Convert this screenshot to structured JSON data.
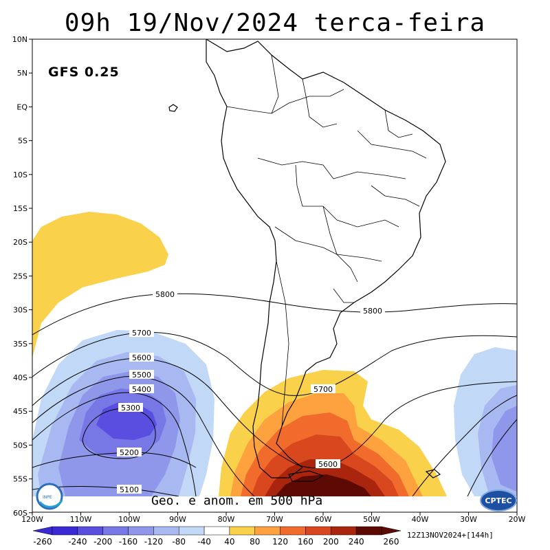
{
  "title": "09h 19/Nov/2024 terca-feira",
  "model_label": "GFS 0.25",
  "bottom_label": "Geo. e anom. em 500 hPa",
  "run_info": "12Z13NOV2024+[144h]",
  "lat_labels": [
    "10N",
    "5N",
    "EQ",
    "5S",
    "10S",
    "15S",
    "20S",
    "25S",
    "30S",
    "35S",
    "40S",
    "45S",
    "50S",
    "55S",
    "60S"
  ],
  "lon_labels": [
    "120W",
    "110W",
    "100W",
    "90W",
    "80W",
    "70W",
    "60W",
    "50W",
    "40W",
    "30W",
    "20W"
  ],
  "contour_labels": [
    "5800",
    "5800",
    "5700",
    "5700",
    "5600",
    "5600",
    "5500",
    "5400",
    "5300",
    "5200",
    "5100"
  ],
  "colorbar": {
    "labels": [
      "-260",
      "-240",
      "-200",
      "-160",
      "-120",
      "-80",
      "-40",
      "40",
      "80",
      "120",
      "160",
      "200",
      "240",
      "260"
    ],
    "colors": [
      "#3a2ad6",
      "#5a4ee0",
      "#7777e6",
      "#8f97ea",
      "#a8b8f0",
      "#c2d8f7",
      "#ffffff",
      "#f9d14a",
      "#fda23e",
      "#f16b2c",
      "#d8471e",
      "#a9250e",
      "#5e0a04"
    ]
  },
  "logos": {
    "left": "INPE",
    "right": "CPTEC"
  }
}
